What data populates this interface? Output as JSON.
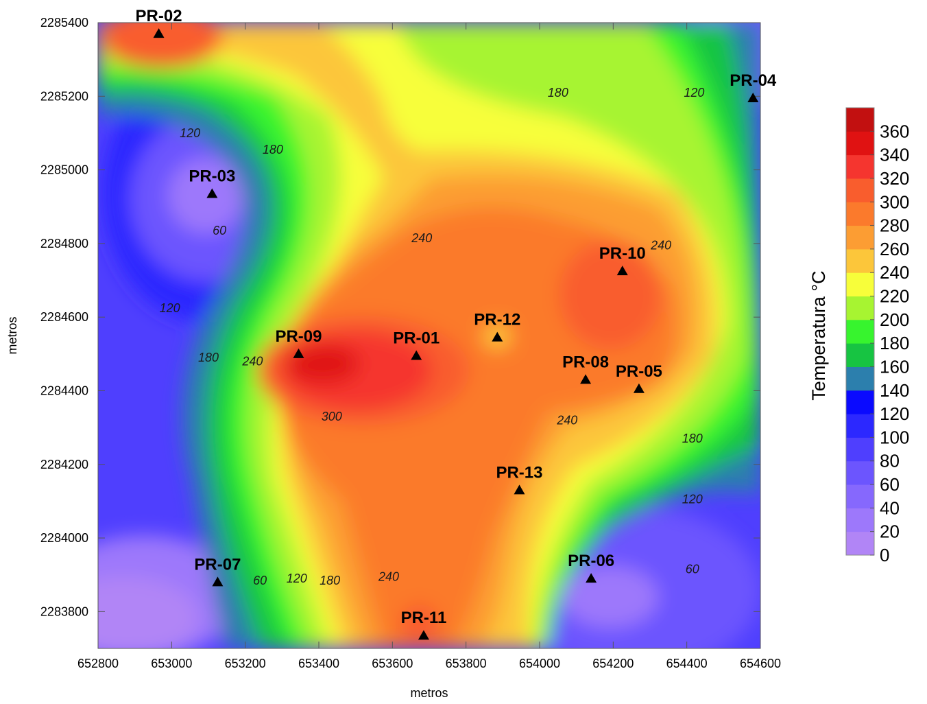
{
  "chart_data": {
    "type": "contour",
    "title": "",
    "xlabel": "metros",
    "ylabel": "metros",
    "xlim": [
      652800,
      654600
    ],
    "ylim": [
      2283700,
      2285400
    ],
    "x_ticks": [
      "652800",
      "653000",
      "653200",
      "653400",
      "653600",
      "653800",
      "654000",
      "654200",
      "654400",
      "654600"
    ],
    "y_ticks": [
      "2283800",
      "2284000",
      "2284200",
      "2284400",
      "2284600",
      "2284800",
      "2285000",
      "2285200",
      "2285400"
    ],
    "colorbar": {
      "label": "Temperatura °C",
      "levels": [
        "0",
        "20",
        "40",
        "60",
        "80",
        "100",
        "120",
        "140",
        "160",
        "180",
        "200",
        "220",
        "240",
        "260",
        "280",
        "300",
        "320",
        "340",
        "360"
      ],
      "colors": [
        "#b185f6",
        "#9d78fb",
        "#8668fd",
        "#6c55fe",
        "#4f3ffe",
        "#2c28ff",
        "#0a0aff",
        "#2c7fad",
        "#17c442",
        "#37f42e",
        "#a7f431",
        "#f7fe3a",
        "#fcc63a",
        "#fc9d33",
        "#fb7a2c",
        "#f95d2d",
        "#f5352f",
        "#e01212",
        "#c21010"
      ]
    },
    "wells": [
      {
        "name": "PR-02",
        "x": 652965,
        "y": 2285370
      },
      {
        "name": "PR-04",
        "x": 654580,
        "y": 2285195
      },
      {
        "name": "PR-03",
        "x": 653110,
        "y": 2284935
      },
      {
        "name": "PR-10",
        "x": 654225,
        "y": 2284725
      },
      {
        "name": "PR-12",
        "x": 653885,
        "y": 2284545
      },
      {
        "name": "PR-09",
        "x": 653345,
        "y": 2284500
      },
      {
        "name": "PR-01",
        "x": 653665,
        "y": 2284495
      },
      {
        "name": "PR-08",
        "x": 654125,
        "y": 2284430
      },
      {
        "name": "PR-05",
        "x": 654270,
        "y": 2284405
      },
      {
        "name": "PR-13",
        "x": 653945,
        "y": 2284130
      },
      {
        "name": "PR-07",
        "x": 653125,
        "y": 2283880
      },
      {
        "name": "PR-06",
        "x": 654140,
        "y": 2283890
      },
      {
        "name": "PR-11",
        "x": 653685,
        "y": 2283735
      }
    ],
    "contour_labels": [
      {
        "text": "180",
        "x": 654050,
        "y": 2285210
      },
      {
        "text": "120",
        "x": 654420,
        "y": 2285210
      },
      {
        "text": "120",
        "x": 653050,
        "y": 2285100
      },
      {
        "text": "180",
        "x": 653275,
        "y": 2285055
      },
      {
        "text": "60",
        "x": 653130,
        "y": 2284835
      },
      {
        "text": "240",
        "x": 653680,
        "y": 2284815
      },
      {
        "text": "240",
        "x": 654330,
        "y": 2284795
      },
      {
        "text": "120",
        "x": 652995,
        "y": 2284625
      },
      {
        "text": "180",
        "x": 653100,
        "y": 2284490
      },
      {
        "text": "240",
        "x": 653220,
        "y": 2284480
      },
      {
        "text": "300",
        "x": 653435,
        "y": 2284330
      },
      {
        "text": "240",
        "x": 654075,
        "y": 2284320
      },
      {
        "text": "180",
        "x": 654415,
        "y": 2284270
      },
      {
        "text": "120",
        "x": 654415,
        "y": 2284105
      },
      {
        "text": "60",
        "x": 654415,
        "y": 2283915
      },
      {
        "text": "60",
        "x": 653240,
        "y": 2283885
      },
      {
        "text": "120",
        "x": 653340,
        "y": 2283890
      },
      {
        "text": "180",
        "x": 653430,
        "y": 2283885
      },
      {
        "text": "240",
        "x": 653590,
        "y": 2283895
      }
    ]
  }
}
